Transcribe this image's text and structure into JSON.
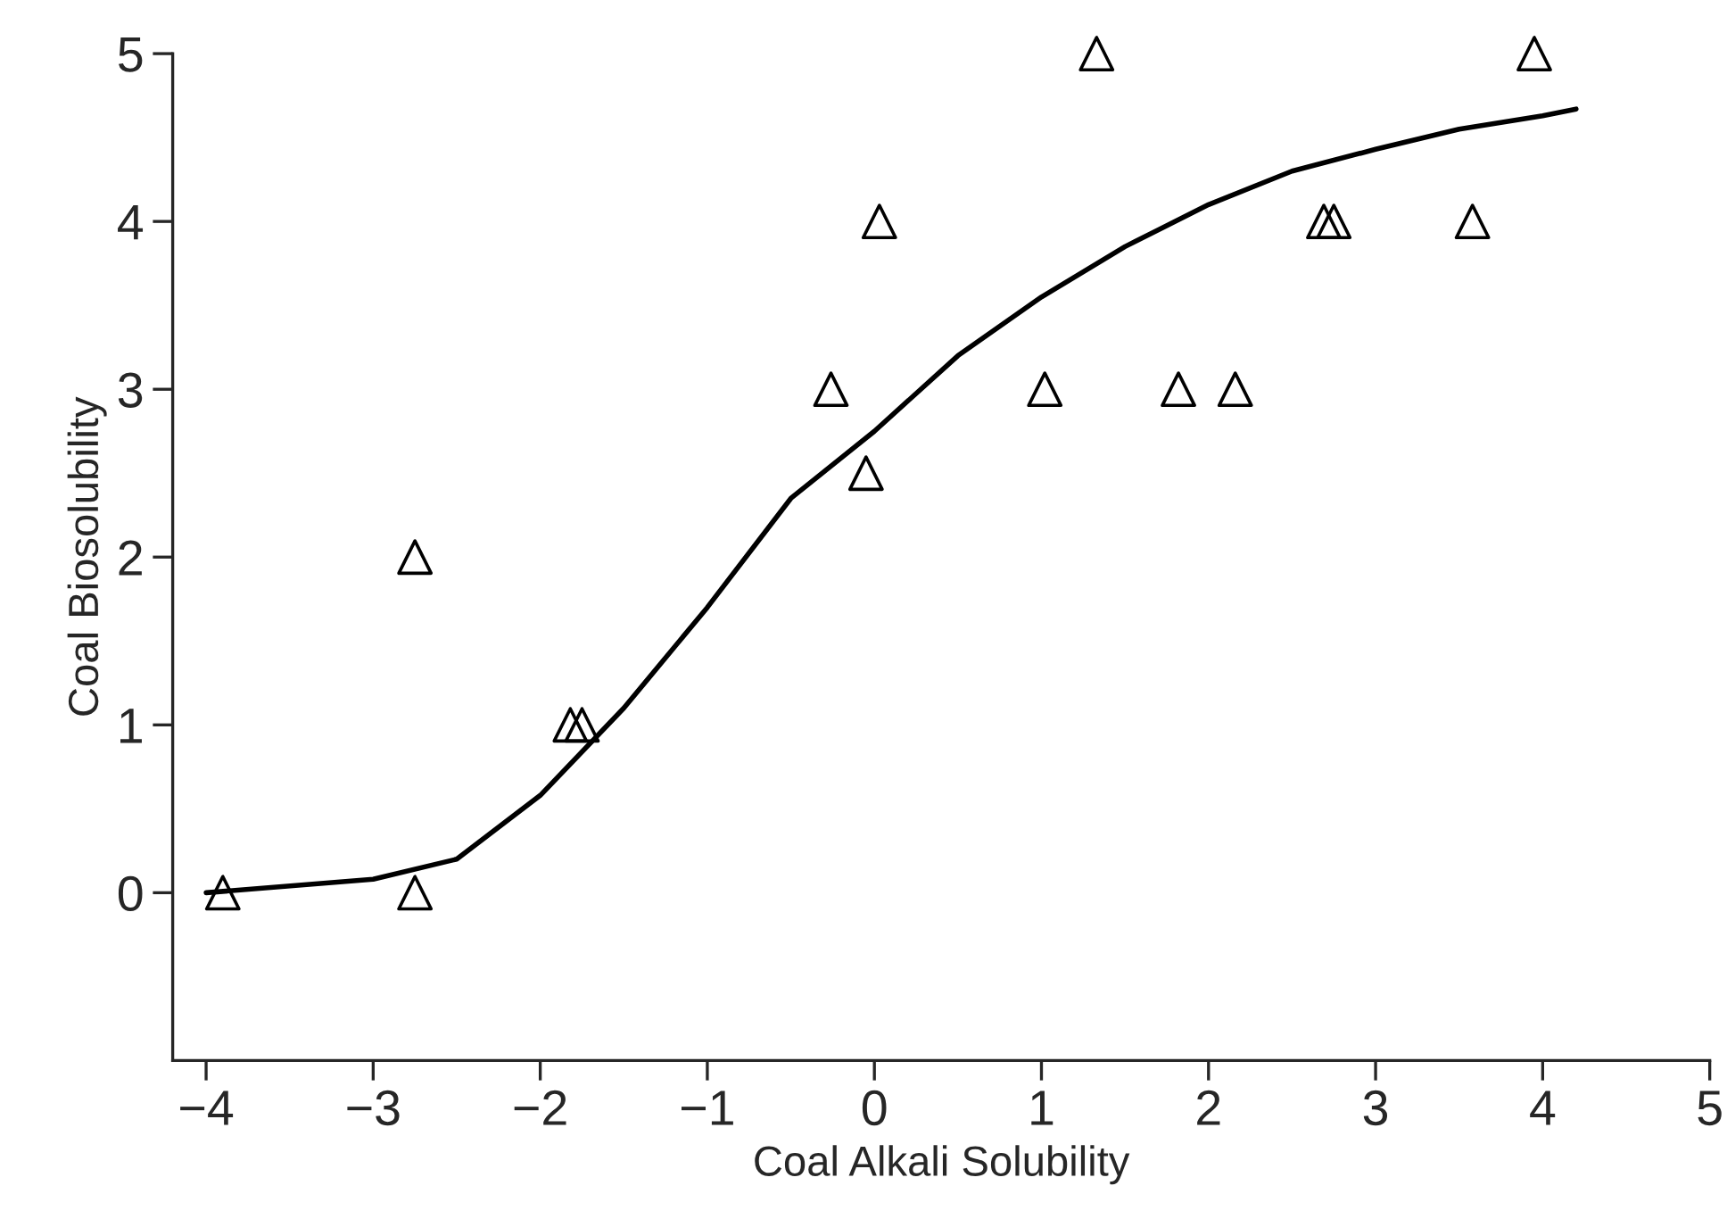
{
  "chart_data": {
    "type": "scatter",
    "xlabel": "Coal Alkali Solubility",
    "ylabel": "Coal Biosolubility",
    "xlim": [
      -4.2,
      5
    ],
    "xticks": [
      {
        "value": -4,
        "label": "−4"
      },
      {
        "value": -3,
        "label": "−3"
      },
      {
        "value": -2,
        "label": "−2"
      },
      {
        "value": -1,
        "label": "−1"
      },
      0,
      1,
      2,
      3,
      4,
      5
    ],
    "ylim": [
      -1,
      5
    ],
    "yticks": [
      0,
      1,
      2,
      3,
      4,
      5
    ],
    "grid": false,
    "legend": false,
    "series": [
      {
        "marker": "triangle",
        "color": "#000000",
        "x": [
          -3.9,
          -2.75,
          -2.75,
          -1.82,
          -1.75,
          -0.26,
          -0.05,
          0.03,
          1.02,
          1.33,
          1.82,
          2.16,
          2.69,
          2.75,
          3.58,
          3.95
        ],
        "values": [
          0,
          2,
          0,
          1,
          1,
          3,
          2.5,
          4,
          3,
          5,
          3,
          3,
          4,
          4,
          4,
          5
        ]
      },
      {
        "type": "line",
        "marker": "none",
        "line_style": "solid",
        "color": "#000000",
        "x": [
          -4,
          -3,
          -2.5,
          -2,
          -1.5,
          -1,
          -0.5,
          0,
          0.5,
          1,
          1.5,
          2,
          2.5,
          3,
          3.5,
          4,
          4.2
        ],
        "values": [
          0,
          0.08,
          0.2,
          0.58,
          1.1,
          1.7,
          2.35,
          2.75,
          3.2,
          3.55,
          3.85,
          4.1,
          4.3,
          4.43,
          4.55,
          4.63,
          4.67
        ]
      }
    ]
  }
}
